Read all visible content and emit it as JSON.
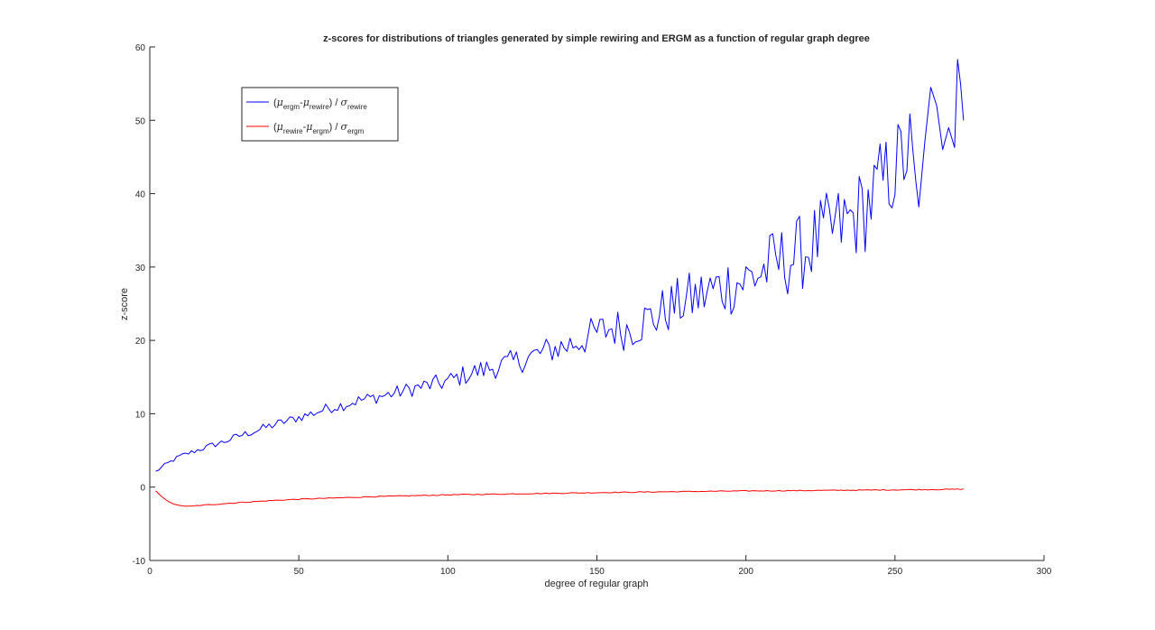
{
  "chart_data": {
    "type": "line",
    "title": "z-scores for distributions of triangles generated by simple rewiring and ERGM as a function of regular graph degree",
    "xlabel": "degree of regular graph",
    "ylabel": "z-score",
    "xlim": [
      0,
      300
    ],
    "ylim": [
      -10,
      60
    ],
    "xticks": [
      0,
      50,
      100,
      150,
      200,
      250,
      300
    ],
    "yticks": [
      -10,
      0,
      10,
      20,
      30,
      40,
      50,
      60
    ],
    "grid": false,
    "legend_position": "top-left",
    "series": [
      {
        "name": "(μergm-μrewire) / σrewire",
        "legend": {
          "open": "(",
          "mu1": "μ",
          "sub1": "ergm",
          "dash": "-",
          "mu2": "μ",
          "sub2": "rewire",
          "close": ") / ",
          "sigma": "σ",
          "sub3": "rewire"
        },
        "color": "#0000ff",
        "x": [
          2,
          5,
          10,
          15,
          20,
          25,
          30,
          35,
          40,
          45,
          50,
          55,
          60,
          65,
          70,
          75,
          80,
          85,
          90,
          95,
          100,
          105,
          110,
          115,
          120,
          125,
          130,
          135,
          140,
          145,
          150,
          155,
          160,
          165,
          170,
          175,
          180,
          185,
          190,
          195,
          200,
          205,
          210,
          215,
          220,
          225,
          230,
          235,
          240,
          245,
          250,
          255,
          258,
          260,
          262,
          264,
          266,
          268,
          270,
          271,
          272,
          273
        ],
        "y": [
          2.1,
          3.0,
          4.2,
          4.9,
          5.6,
          6.2,
          7.0,
          7.6,
          8.3,
          8.9,
          9.5,
          10.1,
          10.8,
          11.2,
          11.8,
          12.2,
          12.6,
          13.1,
          13.6,
          14.0,
          14.4,
          15.2,
          15.8,
          16.3,
          16.8,
          17.4,
          18.1,
          18.8,
          19.3,
          20.1,
          21.0,
          21.7,
          21.5,
          22.5,
          23.3,
          24.6,
          25.4,
          26.1,
          27.0,
          27.7,
          28.2,
          29.3,
          30.5,
          31.2,
          32.3,
          34.0,
          35.2,
          36.3,
          38.0,
          41.0,
          43.5,
          46.0,
          38.2,
          47.0,
          54.5,
          52.0,
          46.0,
          49.0,
          46.3,
          58.3,
          55.0,
          50.0
        ],
        "noise_amplitude": [
          0.2,
          0.25,
          0.3,
          0.35,
          0.4,
          0.45,
          0.5,
          0.55,
          0.6,
          0.6,
          0.65,
          0.7,
          0.75,
          0.8,
          0.85,
          0.9,
          0.95,
          1.0,
          1.1,
          1.2,
          1.3,
          1.4,
          1.5,
          1.6,
          1.7,
          1.8,
          1.9,
          2.0,
          2.2,
          2.4,
          2.6,
          2.8,
          3.0,
          3.2,
          3.4,
          3.6,
          3.8,
          4.0,
          4.2,
          4.4,
          4.6,
          4.8,
          5.0,
          5.2,
          5.4,
          5.6,
          5.8,
          6.0,
          6.2,
          6.4,
          6.6,
          6.8,
          0,
          0,
          0,
          0,
          0,
          0,
          0,
          0,
          0,
          0
        ]
      },
      {
        "name": "(μrewire-μergm) / σergm",
        "legend": {
          "open": "(",
          "mu1": "μ",
          "sub1": "rewire",
          "dash": "-",
          "mu2": "μ",
          "sub2": "ergm",
          "close": ") / ",
          "sigma": "σ",
          "sub3": "ergm"
        },
        "color": "#ff0000",
        "x": [
          2,
          4,
          6,
          8,
          10,
          12,
          15,
          20,
          30,
          40,
          50,
          75,
          100,
          125,
          150,
          175,
          200,
          225,
          250,
          273
        ],
        "y": [
          -0.5,
          -1.3,
          -1.9,
          -2.3,
          -2.5,
          -2.6,
          -2.55,
          -2.4,
          -2.1,
          -1.85,
          -1.65,
          -1.3,
          -1.05,
          -0.9,
          -0.75,
          -0.62,
          -0.52,
          -0.45,
          -0.37,
          -0.28
        ]
      }
    ]
  }
}
